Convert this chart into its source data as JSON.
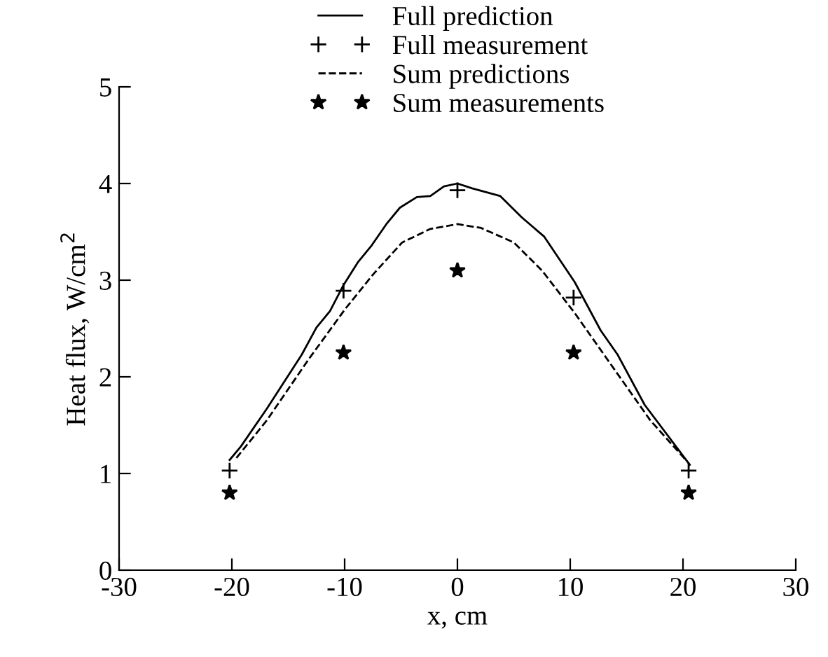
{
  "chart_data": {
    "type": "line",
    "xlabel": "x, cm",
    "ylabel": "Heat flux, W/cm$^{2}$",
    "xlim": [
      -30,
      30
    ],
    "xticks": [
      -30,
      -20,
      -10,
      0,
      10,
      20,
      30
    ],
    "ylim": [
      0,
      5
    ],
    "yticks": [
      0,
      1,
      2,
      3,
      4,
      5
    ],
    "legend": "top",
    "grid": false,
    "series": [
      {
        "name": "Full prediction",
        "line_style": "solid",
        "marker": "none",
        "color": "#000000",
        "x": [
          -20.2,
          -19.2,
          -16.9,
          -13.8,
          -12.5,
          -11.3,
          -10.1,
          -8.8,
          -7.6,
          -6.3,
          -5.1,
          -3.6,
          -2.4,
          -1.2,
          0,
          1.3,
          3.8,
          5.7,
          7.7,
          10.4,
          12.7,
          14.2,
          16.6,
          20.6
        ],
        "values": [
          1.14,
          1.28,
          1.67,
          2.23,
          2.51,
          2.68,
          2.95,
          3.19,
          3.36,
          3.58,
          3.75,
          3.86,
          3.87,
          3.97,
          4.0,
          3.95,
          3.87,
          3.65,
          3.45,
          2.98,
          2.48,
          2.23,
          1.71,
          1.09
        ]
      },
      {
        "name": "Full measurement",
        "type": "scatter",
        "marker": "cross",
        "color": "#000000",
        "x": [
          -20.2,
          -10.1,
          0,
          10.3,
          20.5
        ],
        "values": [
          1.03,
          2.89,
          3.93,
          2.82,
          1.03
        ]
      },
      {
        "name": "Sum predictions",
        "line_style": "dashed",
        "marker": "none",
        "color": "#000000",
        "x": [
          -19.6,
          -16.9,
          -13.2,
          -9.9,
          -7.4,
          -4.9,
          -2.4,
          0,
          2.1,
          5.0,
          7.5,
          10.4,
          14.2,
          17.1,
          20.4
        ],
        "values": [
          1.16,
          1.55,
          2.18,
          2.71,
          3.07,
          3.39,
          3.53,
          3.58,
          3.54,
          3.39,
          3.1,
          2.66,
          2.03,
          1.55,
          1.12
        ]
      },
      {
        "name": "Sum measurements",
        "type": "scatter",
        "marker": "star",
        "color": "#000000",
        "x": [
          -20.2,
          -10.1,
          0,
          10.3,
          20.5
        ],
        "values": [
          0.8,
          2.25,
          3.1,
          2.25,
          0.8
        ]
      }
    ]
  }
}
